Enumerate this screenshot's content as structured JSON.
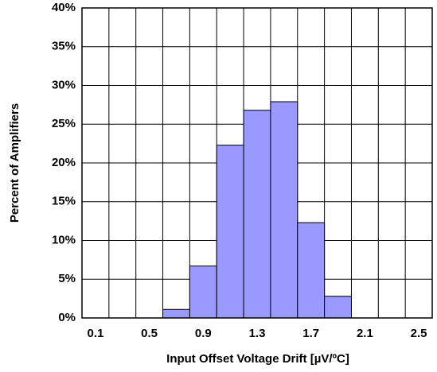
{
  "chart_data": {
    "type": "histogram",
    "xlabel": "Input Offset Voltage Drift [µV/ºC]",
    "ylabel": "Percent of Amplifiers",
    "bins": [
      0.6,
      0.8,
      1.0,
      1.2,
      1.4,
      1.6,
      1.8,
      2.0
    ],
    "values": [
      1.1,
      6.7,
      22.3,
      26.8,
      27.9,
      12.3,
      2.8
    ],
    "color": "#9999ff",
    "xlim": [
      0,
      2.6
    ],
    "xticks": [
      0.1,
      0.5,
      0.9,
      1.3,
      1.7,
      2.1,
      2.5
    ],
    "x_minor_ticks": [
      0,
      0.2,
      0.4,
      0.6,
      0.8,
      1.0,
      1.2,
      1.4,
      1.6,
      1.8,
      2.0,
      2.2,
      2.4,
      2.6
    ],
    "ylim": [
      0,
      40
    ],
    "yticks": [
      {
        "value": 0,
        "label": "0%"
      },
      {
        "value": 5,
        "label": "5%"
      },
      {
        "value": 10,
        "label": "10%"
      },
      {
        "value": 15,
        "label": "15%"
      },
      {
        "value": 20,
        "label": "20%"
      },
      {
        "value": 25,
        "label": "25%"
      },
      {
        "value": 30,
        "label": "30%"
      },
      {
        "value": 35,
        "label": "35%"
      },
      {
        "value": 40,
        "label": "40%"
      }
    ],
    "grid": true
  }
}
